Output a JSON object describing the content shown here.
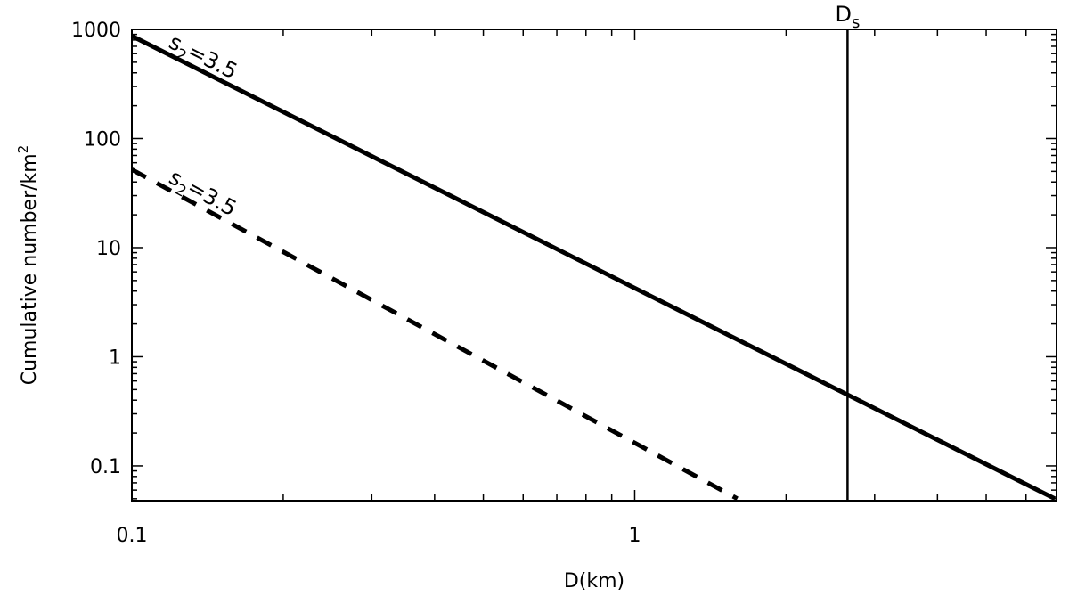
{
  "chart_data": {
    "type": "line",
    "xlabel": "D(km)",
    "ylabel_main": "Cumulative number/km",
    "ylabel_sup": "2",
    "x_scale": "log",
    "y_scale": "log",
    "xlim": [
      0.1,
      6.9
    ],
    "ylim": [
      0.048,
      1000
    ],
    "x_ticks": [
      {
        "value": 0.1,
        "label": "0.1"
      },
      {
        "value": 1,
        "label": "1"
      }
    ],
    "y_ticks": [
      {
        "value": 1000,
        "label": "1000"
      },
      {
        "value": 100,
        "label": "100"
      },
      {
        "value": 10,
        "label": "10"
      },
      {
        "value": 1,
        "label": "1"
      },
      {
        "value": 0.1,
        "label": "0.1"
      }
    ],
    "grid": false,
    "series": [
      {
        "style": "solid",
        "x": [
          0.1,
          6.85
        ],
        "y": [
          870,
          0.05
        ]
      },
      {
        "style": "dashed",
        "x": [
          0.1,
          1.6
        ],
        "y": [
          52,
          0.05
        ]
      }
    ],
    "vertical_line": {
      "x": 2.65,
      "label_main": "D",
      "label_sub": "s"
    },
    "annotations": [
      {
        "series": 0,
        "main": "s",
        "sub": "2",
        "rest": "=3.5"
      },
      {
        "series": 1,
        "main": "s",
        "sub": "2",
        "rest": "=3.5"
      }
    ]
  }
}
